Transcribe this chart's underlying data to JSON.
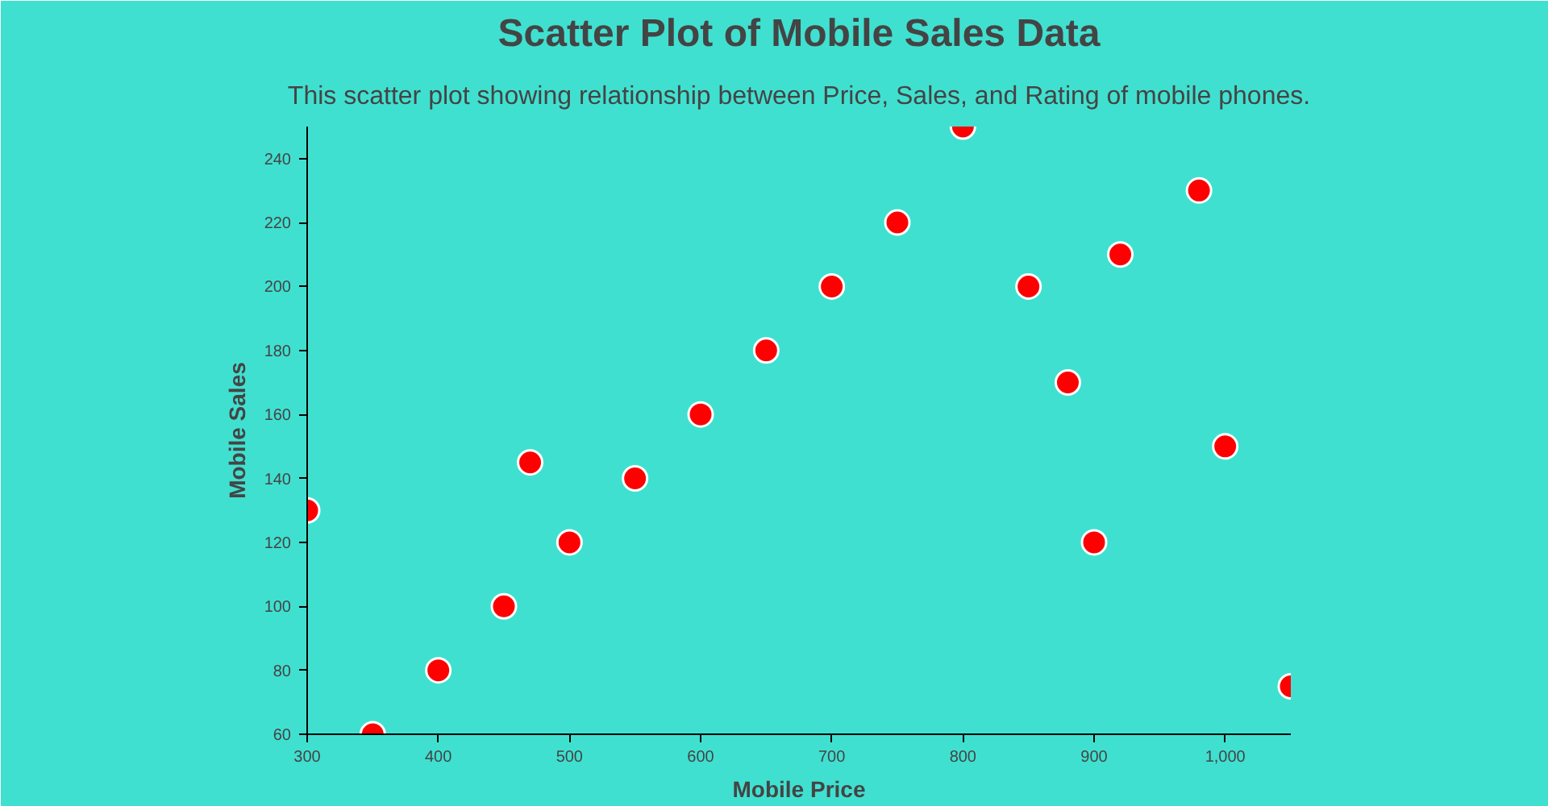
{
  "chart_data": {
    "type": "scatter",
    "title": "Scatter Plot of Mobile Sales Data",
    "subtitle": "This scatter plot showing relationship between Price, Sales, and Rating of mobile phones.",
    "xlabel": "Mobile Price",
    "ylabel": "Mobile Sales",
    "x": [
      300,
      350,
      400,
      450,
      470,
      500,
      550,
      600,
      650,
      700,
      750,
      800,
      850,
      880,
      900,
      920,
      980,
      1000,
      1050
    ],
    "series": [
      {
        "color": "#ff0000",
        "values": [
          130,
          60,
          80,
          100,
          145,
          120,
          140,
          160,
          180,
          200,
          220,
          250,
          200,
          170,
          120,
          210,
          230,
          150,
          75
        ]
      }
    ],
    "xlim": [
      300,
      1050
    ],
    "ylim": [
      60,
      250
    ],
    "xticks": [
      300,
      400,
      500,
      600,
      700,
      800,
      900,
      {
        "value": 1000,
        "label": "1,000"
      }
    ],
    "yticks": [
      60,
      80,
      100,
      120,
      140,
      160,
      180,
      200,
      220,
      240
    ],
    "grid": false,
    "marker": "circle"
  }
}
